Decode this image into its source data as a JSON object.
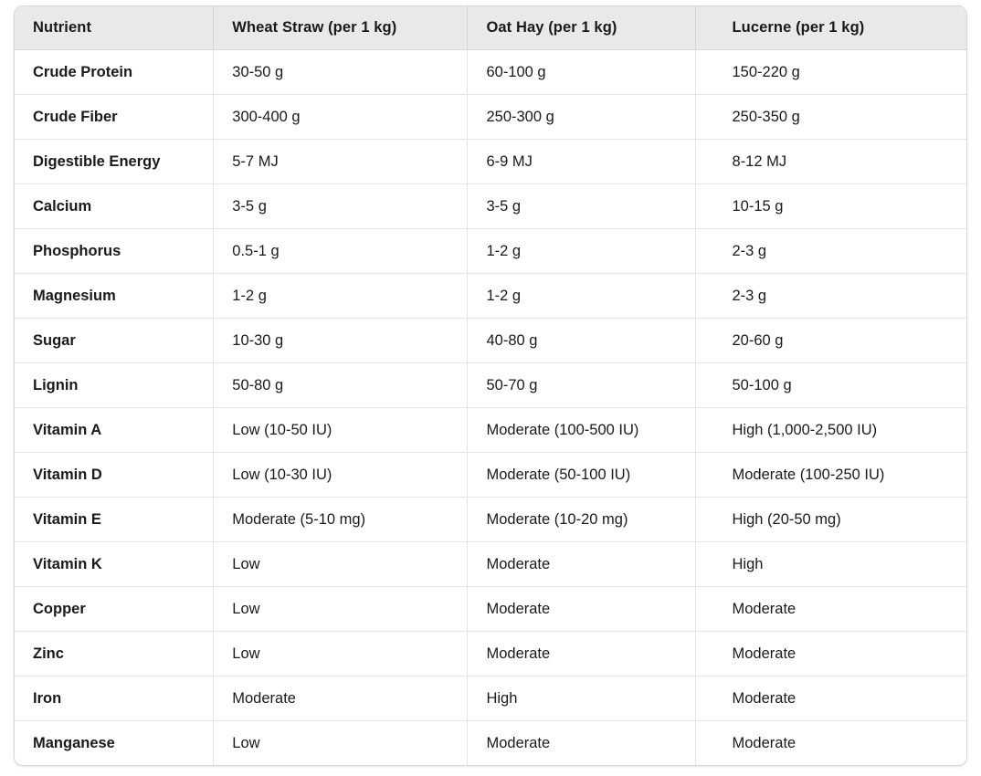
{
  "colors": {
    "header_background": "#e9e9e9",
    "row_background": "#ffffff",
    "border": "#e4e4e4",
    "outer_border": "#d8d8d8",
    "text": "#1a1a1a"
  },
  "chart_data": {
    "type": "table",
    "columns": [
      "Nutrient",
      "Wheat Straw (per 1 kg)",
      "Oat Hay (per 1 kg)",
      "Lucerne (per 1 kg)"
    ],
    "rows": [
      [
        "Crude Protein",
        "30-50 g",
        "60-100 g",
        "150-220 g"
      ],
      [
        "Crude Fiber",
        "300-400 g",
        "250-300 g",
        "250-350 g"
      ],
      [
        "Digestible Energy",
        "5-7 MJ",
        "6-9 MJ",
        "8-12 MJ"
      ],
      [
        "Calcium",
        "3-5 g",
        "3-5 g",
        "10-15 g"
      ],
      [
        "Phosphorus",
        "0.5-1 g",
        "1-2 g",
        "2-3 g"
      ],
      [
        "Magnesium",
        "1-2 g",
        "1-2 g",
        "2-3 g"
      ],
      [
        "Sugar",
        "10-30 g",
        "40-80 g",
        "20-60 g"
      ],
      [
        "Lignin",
        "50-80 g",
        "50-70 g",
        "50-100 g"
      ],
      [
        "Vitamin A",
        "Low (10-50 IU)",
        "Moderate (100-500 IU)",
        "High (1,000-2,500 IU)"
      ],
      [
        "Vitamin D",
        "Low (10-30 IU)",
        "Moderate (50-100 IU)",
        "Moderate (100-250 IU)"
      ],
      [
        "Vitamin E",
        "Moderate (5-10 mg)",
        "Moderate (10-20 mg)",
        "High (20-50 mg)"
      ],
      [
        "Vitamin K",
        "Low",
        "Moderate",
        "High"
      ],
      [
        "Copper",
        "Low",
        "Moderate",
        "Moderate"
      ],
      [
        "Zinc",
        "Low",
        "Moderate",
        "Moderate"
      ],
      [
        "Iron",
        "Moderate",
        "High",
        "Moderate"
      ],
      [
        "Manganese",
        "Low",
        "Moderate",
        "Moderate"
      ]
    ]
  }
}
